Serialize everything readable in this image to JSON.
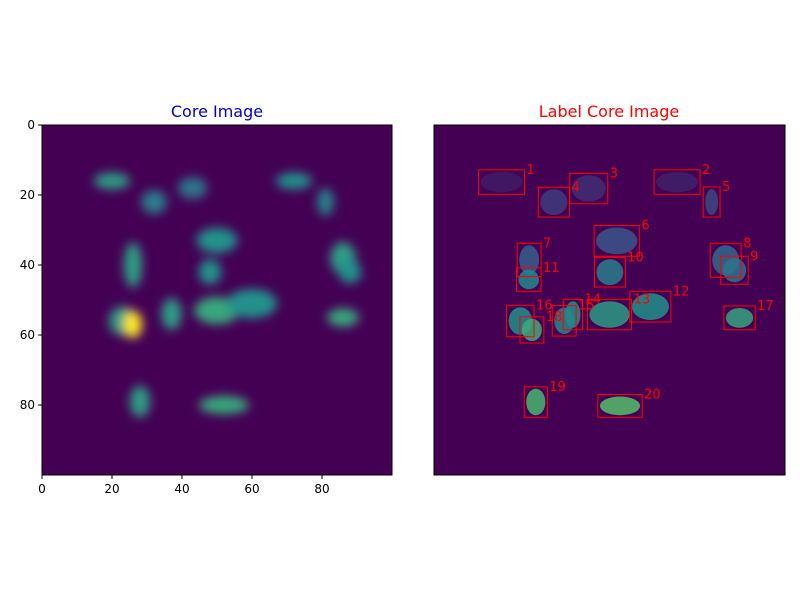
{
  "chart_data": [
    {
      "type": "heatmap",
      "title": "Core Image",
      "title_color": "#0000cc",
      "colormap": "viridis",
      "xlim": [
        0,
        100
      ],
      "ylim": [
        100,
        0
      ],
      "xticks": [
        0,
        20,
        40,
        60,
        80
      ],
      "yticks": [
        0,
        20,
        40,
        60,
        80
      ],
      "blobs": [
        {
          "x": 20,
          "y": 16,
          "rx": 4,
          "ry": 1.8,
          "v": 0.55
        },
        {
          "x": 32,
          "y": 22,
          "rx": 2.8,
          "ry": 2.6,
          "v": 0.42
        },
        {
          "x": 43,
          "y": 18,
          "rx": 3.2,
          "ry": 2.4,
          "v": 0.38
        },
        {
          "x": 72,
          "y": 16,
          "rx": 4,
          "ry": 1.8,
          "v": 0.5
        },
        {
          "x": 81,
          "y": 22,
          "rx": 1.8,
          "ry": 3,
          "v": 0.45
        },
        {
          "x": 50,
          "y": 33,
          "rx": 4.5,
          "ry": 2.8,
          "v": 0.5
        },
        {
          "x": 26,
          "y": 40,
          "rx": 2,
          "ry": 5,
          "v": 0.55
        },
        {
          "x": 48,
          "y": 42,
          "rx": 2.5,
          "ry": 2.8,
          "v": 0.5
        },
        {
          "x": 86,
          "y": 38,
          "rx": 2.8,
          "ry": 3.5,
          "v": 0.55
        },
        {
          "x": 88,
          "y": 42,
          "rx": 2.5,
          "ry": 2.5,
          "v": 0.5
        },
        {
          "x": 37,
          "y": 54,
          "rx": 2.2,
          "ry": 3.5,
          "v": 0.55
        },
        {
          "x": 50,
          "y": 53,
          "rx": 5,
          "ry": 3,
          "v": 0.6
        },
        {
          "x": 60,
          "y": 51,
          "rx": 5.5,
          "ry": 3.2,
          "v": 0.5
        },
        {
          "x": 23,
          "y": 56,
          "rx": 3,
          "ry": 3.2,
          "v": 0.55
        },
        {
          "x": 26,
          "y": 57,
          "rx": 2,
          "ry": 3,
          "v": 1.0
        },
        {
          "x": 86,
          "y": 55,
          "rx": 3.5,
          "ry": 2,
          "v": 0.6
        },
        {
          "x": 28,
          "y": 79,
          "rx": 2.2,
          "ry": 3.5,
          "v": 0.55
        },
        {
          "x": 52,
          "y": 80,
          "rx": 5.5,
          "ry": 2,
          "v": 0.6
        }
      ]
    },
    {
      "type": "heatmap",
      "title": "Label Core Image",
      "title_color": "#ff0000",
      "box_color": "#ff0000",
      "regions": [
        {
          "label": "1",
          "x0": 12.7,
          "y0": 12.8,
          "x1": 25.8,
          "y1": 19.8,
          "v": 0.08
        },
        {
          "label": "2",
          "x0": 62.7,
          "y0": 12.8,
          "x1": 75.8,
          "y1": 19.8,
          "v": 0.1
        },
        {
          "label": "3",
          "x0": 38.7,
          "y0": 13.8,
          "x1": 49.5,
          "y1": 22.5,
          "v": 0.14
        },
        {
          "label": "4",
          "x0": 29.7,
          "y0": 17.8,
          "x1": 38.6,
          "y1": 26.3,
          "v": 0.18
        },
        {
          "label": "5",
          "x0": 76.7,
          "y0": 17.7,
          "x1": 81.5,
          "y1": 26.3,
          "v": 0.22
        },
        {
          "label": "6",
          "x0": 45.6,
          "y0": 28.7,
          "x1": 58.5,
          "y1": 37.5,
          "v": 0.26
        },
        {
          "label": "7",
          "x0": 23.7,
          "y0": 33.8,
          "x1": 30.5,
          "y1": 43.3,
          "v": 0.3
        },
        {
          "label": "8",
          "x0": 78.7,
          "y0": 33.8,
          "x1": 87.5,
          "y1": 43.5,
          "v": 0.34
        },
        {
          "label": "9",
          "x0": 81.7,
          "y0": 37.5,
          "x1": 89.5,
          "y1": 45.5,
          "v": 0.38
        },
        {
          "label": "10",
          "x0": 45.7,
          "y0": 37.8,
          "x1": 54.5,
          "y1": 46.3,
          "v": 0.42
        },
        {
          "label": "11",
          "x0": 23.5,
          "y0": 40.8,
          "x1": 30.5,
          "y1": 47.5,
          "v": 0.46
        },
        {
          "label": "12",
          "x0": 55.8,
          "y0": 47.5,
          "x1": 67.5,
          "y1": 56.3,
          "v": 0.5
        },
        {
          "label": "13",
          "x0": 43.7,
          "y0": 49.8,
          "x1": 56.3,
          "y1": 58.5,
          "v": 0.54
        },
        {
          "label": "14",
          "x0": 36.8,
          "y0": 49.8,
          "x1": 42.3,
          "y1": 58.5,
          "v": 0.5
        },
        {
          "label": "15",
          "x0": 33.7,
          "y0": 51.6,
          "x1": 40.5,
          "y1": 60.3,
          "v": 0.46
        },
        {
          "label": "16",
          "x0": 20.7,
          "y0": 51.5,
          "x1": 28.5,
          "y1": 60.5,
          "v": 0.5
        },
        {
          "label": "17",
          "x0": 82.6,
          "y0": 51.7,
          "x1": 91.5,
          "y1": 58.5,
          "v": 0.58
        },
        {
          "label": "18",
          "x0": 24.5,
          "y0": 54.8,
          "x1": 31.3,
          "y1": 62.3,
          "v": 0.62
        },
        {
          "label": "19",
          "x0": 25.7,
          "y0": 74.8,
          "x1": 32.3,
          "y1": 83.5,
          "v": 0.66
        },
        {
          "label": "20",
          "x0": 46.7,
          "y0": 77.0,
          "x1": 59.3,
          "y1": 83.5,
          "v": 0.7
        }
      ]
    }
  ]
}
